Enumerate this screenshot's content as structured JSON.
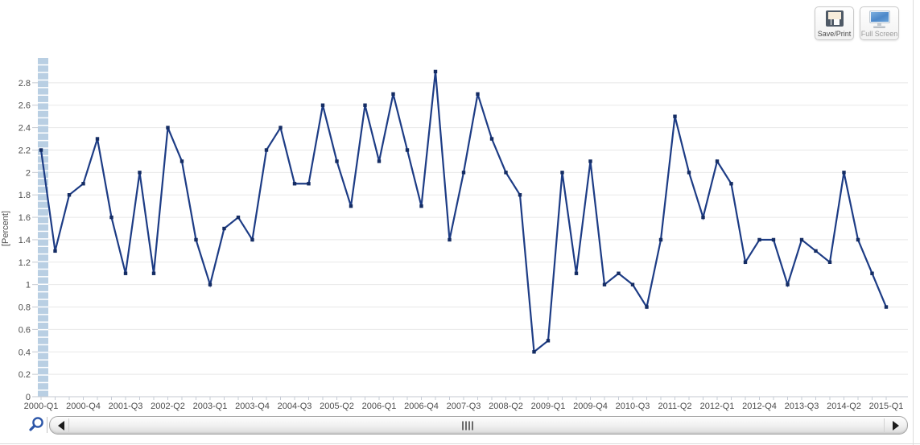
{
  "toolbar": {
    "save_print_label": "Save/Print",
    "full_screen_label": "Full Screen",
    "save_print_icon": "floppy-disk-icon",
    "full_screen_icon": "monitor-icon"
  },
  "bottom_bar": {
    "zoom_icon": "magnifier-icon",
    "scroll_left_icon": "left-arrow-icon",
    "scroll_right_icon": "right-arrow-icon"
  },
  "chart_data": {
    "type": "line",
    "title": "",
    "xlabel": "",
    "ylabel": "[Percent]",
    "ylim": [
      0,
      3.0
    ],
    "y_tick_step": 0.2,
    "grid": "horizontal",
    "legend": "none",
    "colors": {
      "line": "#1d3c85",
      "marker": "#142c63",
      "grid": "#e8e8e8",
      "axis": "#c6cad1",
      "tick": "#c6ccd6",
      "tick_label": "#4d4d4d",
      "axis_band": "#b9cfe3"
    },
    "y_tick_labels": [
      "0",
      "0.2",
      "0.4",
      "0.6",
      "0.8",
      "1",
      "1.2",
      "1.4",
      "1.6",
      "1.8",
      "2",
      "2.2",
      "2.4",
      "2.6",
      "2.8"
    ],
    "x_tick_labels": [
      "2000-Q1",
      "2000-Q4",
      "2001-Q3",
      "2002-Q2",
      "2003-Q1",
      "2003-Q4",
      "2004-Q3",
      "2005-Q2",
      "2006-Q1",
      "2006-Q4",
      "2007-Q3",
      "2008-Q2",
      "2009-Q1",
      "2009-Q4",
      "2010-Q3",
      "2011-Q2",
      "2012-Q1",
      "2012-Q4",
      "2013-Q3",
      "2014-Q2",
      "2015-Q1"
    ],
    "categories": [
      "2000-Q1",
      "2000-Q2",
      "2000-Q3",
      "2000-Q4",
      "2001-Q1",
      "2001-Q2",
      "2001-Q3",
      "2001-Q4",
      "2002-Q1",
      "2002-Q2",
      "2002-Q3",
      "2002-Q4",
      "2003-Q1",
      "2003-Q2",
      "2003-Q3",
      "2003-Q4",
      "2004-Q1",
      "2004-Q2",
      "2004-Q3",
      "2004-Q4",
      "2005-Q1",
      "2005-Q2",
      "2005-Q3",
      "2005-Q4",
      "2006-Q1",
      "2006-Q2",
      "2006-Q3",
      "2006-Q4",
      "2007-Q1",
      "2007-Q2",
      "2007-Q3",
      "2007-Q4",
      "2008-Q1",
      "2008-Q2",
      "2008-Q3",
      "2008-Q4",
      "2009-Q1",
      "2009-Q2",
      "2009-Q3",
      "2009-Q4",
      "2010-Q1",
      "2010-Q2",
      "2010-Q3",
      "2010-Q4",
      "2011-Q1",
      "2011-Q2",
      "2011-Q3",
      "2011-Q4",
      "2012-Q1",
      "2012-Q2",
      "2012-Q3",
      "2012-Q4",
      "2013-Q1",
      "2013-Q2",
      "2013-Q3",
      "2013-Q4",
      "2014-Q1",
      "2014-Q2",
      "2014-Q3",
      "2014-Q4",
      "2015-Q1"
    ],
    "values": [
      2.2,
      1.3,
      1.8,
      1.9,
      2.3,
      1.6,
      1.1,
      2.0,
      1.1,
      2.4,
      2.1,
      1.4,
      1.0,
      1.5,
      1.6,
      1.4,
      2.2,
      2.4,
      1.9,
      1.9,
      2.6,
      2.1,
      1.7,
      2.6,
      2.1,
      2.7,
      2.2,
      1.7,
      2.9,
      1.4,
      2.0,
      2.7,
      2.3,
      2.0,
      1.8,
      0.4,
      0.5,
      2.0,
      1.1,
      2.1,
      1.0,
      1.1,
      1.0,
      0.8,
      1.4,
      2.5,
      2.0,
      1.6,
      2.1,
      1.9,
      1.2,
      1.4,
      1.4,
      1.0,
      1.4,
      1.3,
      1.2,
      2.0,
      1.4,
      1.1,
      0.8
    ]
  }
}
